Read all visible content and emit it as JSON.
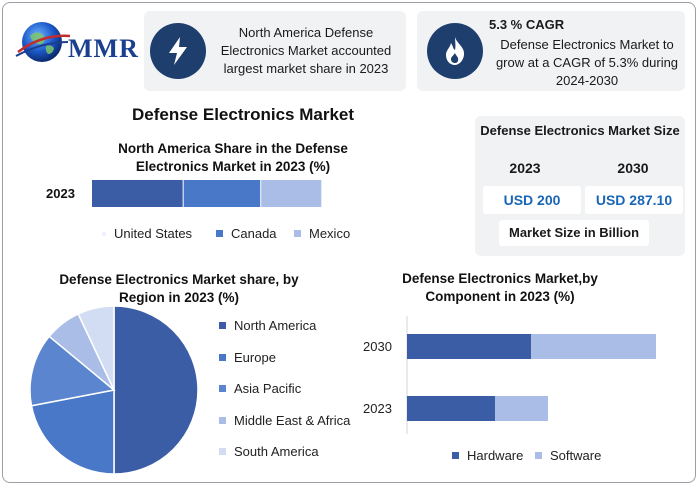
{
  "logo": {
    "text": "MMR"
  },
  "card_share": {
    "text": "North America Defense Electronics Market accounted largest market share in 2023"
  },
  "card_cagr": {
    "headline": "5.3 % CAGR",
    "text": "Defense Electronics Market to grow at a CAGR of 5.3% during 2024-2030"
  },
  "main_title": "Defense Electronics Market",
  "market_size": {
    "title": "Defense Electronics Market Size",
    "year_a": "2023",
    "value_a": "USD 200",
    "year_b": "2030",
    "value_b": "USD 287.10",
    "unit": "Market Size in Billion"
  },
  "colors": {
    "dark": "#3a5da5",
    "mid": "#4a78c8",
    "light": "#a9bde6",
    "pale": "#d2ddf3",
    "cyan_slice": "#5b86cf"
  },
  "chart_data": [
    {
      "type": "bar",
      "orientation": "horizontal",
      "stacked": true,
      "title": "North America Share in the Defense Electronics Market in 2023 (%)",
      "categories": [
        "2023"
      ],
      "series": [
        {
          "name": "United States",
          "values": [
            39
          ]
        },
        {
          "name": "Canada",
          "values": [
            33
          ]
        },
        {
          "name": "Mexico",
          "values": [
            26
          ]
        }
      ],
      "legend_position": "bottom"
    },
    {
      "type": "pie",
      "title": "Defense Electronics Market share, by Region in 2023 (%)",
      "labels": [
        "North America",
        "Europe",
        "Asia Pacific",
        "Middle East & Africa",
        "South America"
      ],
      "values": [
        50,
        22,
        14,
        7,
        7
      ],
      "legend_position": "right"
    },
    {
      "type": "bar",
      "orientation": "horizontal",
      "stacked": true,
      "title": "Defense Electronics Market,by Component in 2023 (%)",
      "categories": [
        "2030",
        "2023"
      ],
      "series": [
        {
          "name": "Hardware",
          "values": [
            124,
            88
          ]
        },
        {
          "name": "Software",
          "values": [
            125,
            53
          ]
        }
      ],
      "legend_position": "bottom"
    }
  ]
}
